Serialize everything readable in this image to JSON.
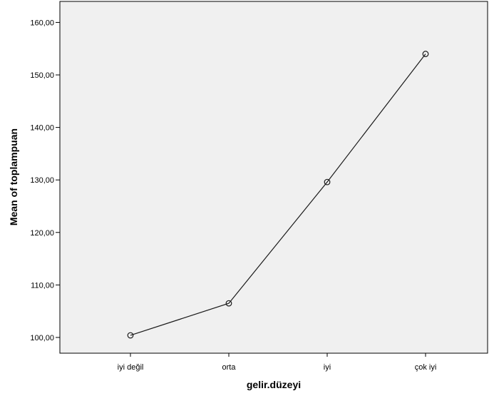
{
  "chart_data": {
    "type": "line",
    "title": "",
    "xlabel": "gelir.düzeyi",
    "ylabel": "Mean of toplampuan",
    "categories": [
      "iyi değil",
      "orta",
      "iyi",
      "çok iyi"
    ],
    "series": [
      {
        "values": [
          100.4,
          106.5,
          129.6,
          154.0
        ]
      }
    ],
    "ylim": [
      97.0,
      164.0
    ],
    "yticks": [
      100,
      110,
      120,
      130,
      140,
      150,
      160
    ],
    "ytick_labels": [
      "100,00",
      "110,00",
      "120,00",
      "130,00",
      "140,00",
      "150,00",
      "160,00"
    ],
    "grid": false,
    "legend": "none",
    "colors": {
      "plot_background": "#f0f0f0",
      "line": "#1a1a1a",
      "marker_stroke": "#1a1a1a"
    }
  }
}
